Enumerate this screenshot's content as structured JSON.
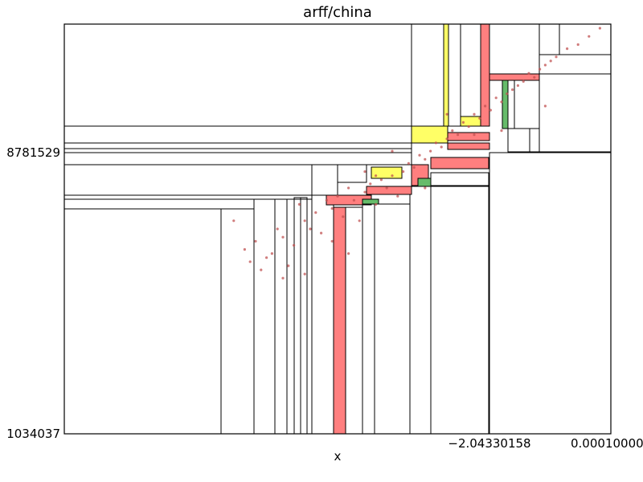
{
  "chart_data": {
    "type": "scatter",
    "title": "arff/china",
    "xlabel": "x",
    "ylabel": "",
    "x_ticks": [
      "−2.04330158",
      "0.000100000"
    ],
    "y_ticks": [
      "8781529",
      "1034037"
    ],
    "grid": false,
    "legend": "none",
    "colors": {
      "red": "#ff7f7f",
      "yellow": "#ffff66",
      "green": "#66bb6a",
      "points": "#c05050",
      "lines": "#000000"
    },
    "series": [
      {
        "values": [
          [
            0.31,
            0.52
          ],
          [
            0.33,
            0.45
          ],
          [
            0.35,
            0.47
          ],
          [
            0.34,
            0.42
          ],
          [
            0.36,
            0.4
          ],
          [
            0.38,
            0.44
          ],
          [
            0.39,
            0.5
          ],
          [
            0.4,
            0.48
          ],
          [
            0.41,
            0.41
          ],
          [
            0.42,
            0.46
          ],
          [
            0.43,
            0.56
          ],
          [
            0.44,
            0.52
          ],
          [
            0.45,
            0.5
          ],
          [
            0.46,
            0.54
          ],
          [
            0.47,
            0.49
          ],
          [
            0.48,
            0.57
          ],
          [
            0.49,
            0.55
          ],
          [
            0.5,
            0.58
          ],
          [
            0.51,
            0.53
          ],
          [
            0.52,
            0.6
          ],
          [
            0.53,
            0.57
          ],
          [
            0.54,
            0.52
          ],
          [
            0.55,
            0.59
          ],
          [
            0.56,
            0.61
          ],
          [
            0.57,
            0.56
          ],
          [
            0.58,
            0.62
          ],
          [
            0.59,
            0.6
          ],
          [
            0.6,
            0.63
          ],
          [
            0.61,
            0.58
          ],
          [
            0.62,
            0.64
          ],
          [
            0.63,
            0.66
          ],
          [
            0.64,
            0.65
          ],
          [
            0.65,
            0.68
          ],
          [
            0.66,
            0.67
          ],
          [
            0.67,
            0.69
          ],
          [
            0.68,
            0.71
          ],
          [
            0.69,
            0.7
          ],
          [
            0.7,
            0.72
          ],
          [
            0.71,
            0.74
          ],
          [
            0.72,
            0.73
          ],
          [
            0.73,
            0.76
          ],
          [
            0.74,
            0.75
          ],
          [
            0.75,
            0.78
          ],
          [
            0.76,
            0.77
          ],
          [
            0.77,
            0.8
          ],
          [
            0.78,
            0.79
          ],
          [
            0.79,
            0.82
          ],
          [
            0.8,
            0.81
          ],
          [
            0.81,
            0.83
          ],
          [
            0.82,
            0.84
          ],
          [
            0.83,
            0.85
          ],
          [
            0.84,
            0.86
          ],
          [
            0.85,
            0.88
          ],
          [
            0.86,
            0.87
          ],
          [
            0.87,
            0.89
          ],
          [
            0.88,
            0.9
          ],
          [
            0.89,
            0.91
          ],
          [
            0.9,
            0.92
          ],
          [
            0.92,
            0.94
          ],
          [
            0.94,
            0.95
          ],
          [
            0.96,
            0.97
          ],
          [
            0.98,
            0.99
          ],
          [
            0.52,
            0.44
          ],
          [
            0.49,
            0.47
          ],
          [
            0.55,
            0.64
          ],
          [
            0.6,
            0.69
          ],
          [
            0.66,
            0.6
          ],
          [
            0.7,
            0.78
          ],
          [
            0.75,
            0.73
          ],
          [
            0.8,
            0.74
          ],
          [
            0.88,
            0.8
          ],
          [
            0.4,
            0.38
          ],
          [
            0.37,
            0.43
          ],
          [
            0.44,
            0.39
          ],
          [
            0.57,
            0.63
          ]
        ]
      }
    ]
  }
}
